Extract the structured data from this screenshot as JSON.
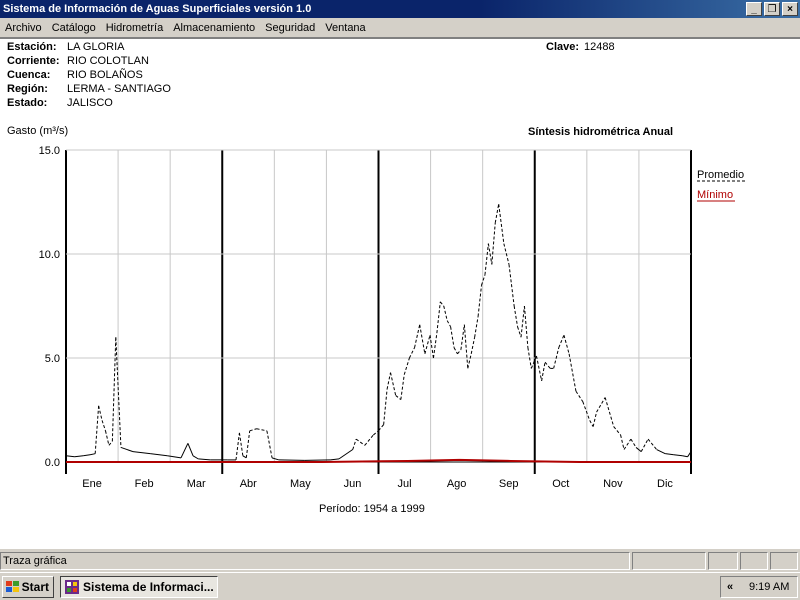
{
  "window": {
    "title": "Sistema de Información de Aguas Superficiales  versión 1.0",
    "min_glyph": "_",
    "max_glyph": "❐",
    "close_glyph": "×"
  },
  "menu": [
    "Archivo",
    "Catálogo",
    "Hidrometría",
    "Almacenamiento",
    "Seguridad",
    "Ventana"
  ],
  "station": {
    "labels": {
      "estacion": "Estación:",
      "corriente": "Corriente:",
      "cuenca": "Cuenca:",
      "region": "Región:",
      "estado": "Estado:",
      "clave": "Clave:"
    },
    "values": {
      "estacion": "LA GLORIA",
      "corriente": "RIO COLOTLAN",
      "cuenca": "RIO BOLAÑOS",
      "region": "LERMA - SANTIAGO",
      "estado": "JALISCO",
      "clave": "12488"
    }
  },
  "chart_header": {
    "ylabel": "Gasto (m³/s)",
    "title": "Síntesis hidrométrica   Anual",
    "period": "Período:  1954 a 1999"
  },
  "chart_data": {
    "type": "line",
    "title": "Síntesis hidrométrica   Anual",
    "ylabel": "Gasto (m³/s)",
    "xlabel": "Período:  1954 a 1999",
    "ylim": [
      0,
      15
    ],
    "yticks": [
      "0.0",
      "5.0",
      "10.0",
      "15.0"
    ],
    "categories": [
      "Ene",
      "Feb",
      "Mar",
      "Abr",
      "May",
      "Jun",
      "Jul",
      "Ago",
      "Sep",
      "Oct",
      "Nov",
      "Dic"
    ],
    "grid": true,
    "legend_position": "right",
    "x_unit": "day of year",
    "series": [
      {
        "name": "Promedio",
        "color": "#000000",
        "dashed_seasons": true,
        "x": [
          1,
          6,
          11,
          15,
          18,
          20,
          22,
          24,
          26,
          28,
          30,
          33,
          40,
          50,
          60,
          68,
          72,
          75,
          78,
          85,
          95,
          100,
          102,
          104,
          106,
          108,
          112,
          118,
          121,
          125,
          140,
          155,
          160,
          168,
          170,
          175,
          180,
          183,
          186,
          188,
          190,
          193,
          196,
          198,
          201,
          204,
          207,
          210,
          213,
          215,
          217,
          219,
          221,
          223,
          225,
          227,
          229,
          231,
          233,
          235,
          237,
          239,
          241,
          243,
          245,
          247,
          249,
          251,
          253,
          256,
          259,
          262,
          264,
          266,
          268,
          270,
          272,
          275,
          278,
          280,
          283,
          285,
          288,
          291,
          294,
          298,
          302,
          306,
          308,
          310,
          315,
          320,
          324,
          326,
          330,
          333,
          336,
          340,
          345,
          350,
          355,
          360,
          363,
          365
        ],
        "y": [
          0.3,
          0.25,
          0.3,
          0.35,
          0.4,
          2.7,
          2.0,
          1.5,
          0.8,
          1.0,
          6.0,
          0.7,
          0.5,
          0.4,
          0.3,
          0.2,
          0.9,
          0.3,
          0.15,
          0.1,
          0.1,
          0.1,
          1.4,
          0.3,
          0.2,
          1.5,
          1.6,
          1.5,
          0.2,
          0.1,
          0.08,
          0.1,
          0.15,
          0.6,
          1.1,
          0.8,
          1.3,
          1.5,
          1.8,
          3.5,
          4.3,
          3.2,
          3.0,
          4.2,
          5.0,
          5.5,
          6.6,
          5.2,
          6.1,
          5.0,
          6.2,
          7.7,
          7.5,
          6.8,
          6.5,
          5.5,
          5.2,
          5.4,
          6.6,
          4.5,
          5.2,
          6.0,
          7.0,
          8.5,
          9.0,
          10.5,
          9.5,
          11.5,
          12.4,
          10.5,
          9.5,
          7.5,
          6.5,
          6.0,
          7.5,
          5.5,
          4.5,
          5.1,
          3.9,
          4.8,
          4.5,
          4.5,
          5.5,
          6.1,
          5.2,
          3.4,
          2.9,
          2.0,
          1.7,
          2.4,
          3.1,
          1.7,
          1.3,
          0.6,
          1.1,
          0.7,
          0.5,
          1.1,
          0.6,
          0.4,
          0.35,
          0.3,
          0.25,
          0.5
        ]
      },
      {
        "name": "Mínimo",
        "color": "#b00000",
        "x": [
          1,
          90,
          150,
          200,
          230,
          260,
          300,
          365
        ],
        "y": [
          0.0,
          0.0,
          0.0,
          0.05,
          0.1,
          0.05,
          0.0,
          0.0
        ]
      }
    ]
  },
  "statusbar": {
    "text": "Traza gráfica"
  },
  "taskbar": {
    "start_label": "Start",
    "task_label": "Sistema de Informaci...",
    "tray_arrow": "«",
    "clock": "9:19 AM"
  }
}
